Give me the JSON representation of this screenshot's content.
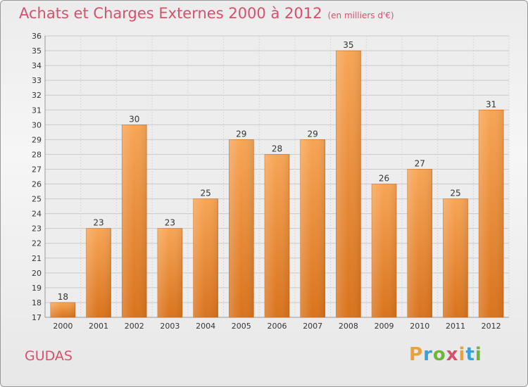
{
  "title": "Achats et Charges Externes 2000 à 2012",
  "subtitle": "(en milliers d'€)",
  "town": "GUDAS",
  "logo": {
    "letters": [
      "P",
      "r",
      "o",
      "x",
      "i",
      "t",
      "i"
    ],
    "colors": [
      "#e9a23b",
      "#3aa0d8",
      "#6fb53c",
      "#d5506b",
      "#e9a23b",
      "#3aa0d8",
      "#6fb53c"
    ]
  },
  "chart_data": {
    "type": "bar",
    "categories": [
      "2000",
      "2001",
      "2002",
      "2003",
      "2004",
      "2005",
      "2006",
      "2007",
      "2008",
      "2009",
      "2010",
      "2011",
      "2012"
    ],
    "values": [
      18,
      23,
      30,
      23,
      25,
      29,
      28,
      29,
      35,
      26,
      27,
      25,
      31
    ],
    "title": "Achats et Charges Externes 2000 à 2012",
    "ylim": [
      17,
      36
    ],
    "yticks": [
      17,
      18,
      19,
      20,
      21,
      22,
      23,
      24,
      25,
      26,
      27,
      28,
      29,
      30,
      31,
      32,
      33,
      34,
      35,
      36
    ],
    "grid": true,
    "bar_color": "#f0923a"
  }
}
